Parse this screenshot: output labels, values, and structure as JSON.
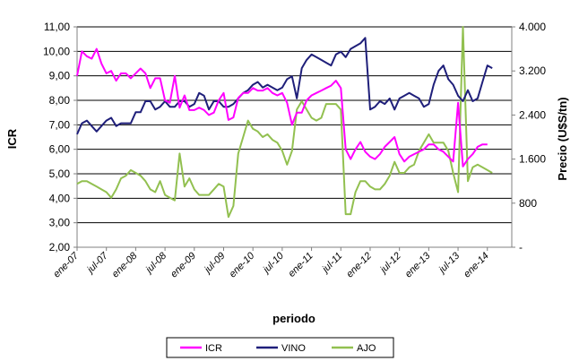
{
  "chart_data": {
    "type": "line",
    "xlabel": "periodo",
    "ylabel_left": "ICR",
    "ylabel_right": "Precio (U$S/tn)",
    "left_axis": {
      "min": 2.0,
      "max": 11.0,
      "step": 1.0,
      "ticks": [
        "2,00",
        "3,00",
        "4,00",
        "5,00",
        "6,00",
        "7,00",
        "8,00",
        "9,00",
        "10,00",
        "11,00"
      ]
    },
    "right_axis": {
      "min": 0,
      "max": 4000,
      "step": 800,
      "ticks": [
        "-",
        "800",
        "1.600",
        "2.400",
        "3.200",
        "4.000"
      ]
    },
    "x_tick_labels": [
      "ene-07",
      "jul-07",
      "ene-08",
      "jul-08",
      "ene-09",
      "jul-09",
      "ene-10",
      "jul-10",
      "ene-11",
      "jul-11",
      "ene-12",
      "jul-12",
      "ene-13",
      "jul-13",
      "ene-14"
    ],
    "x_tick_months": [
      0,
      6,
      12,
      18,
      24,
      30,
      36,
      42,
      48,
      54,
      60,
      66,
      72,
      78,
      84
    ],
    "x_max_month": 89,
    "grid": "horizontal",
    "legend_position": "bottom",
    "series": [
      {
        "name": "ICR",
        "axis": "left",
        "color": "#ff00ff",
        "points": [
          [
            0,
            9.0
          ],
          [
            1,
            10.0
          ],
          [
            2,
            9.8
          ],
          [
            3,
            9.7
          ],
          [
            4,
            10.1
          ],
          [
            5,
            9.5
          ],
          [
            6,
            9.1
          ],
          [
            7,
            9.2
          ],
          [
            8,
            8.8
          ],
          [
            9,
            9.1
          ],
          [
            10,
            9.1
          ],
          [
            11,
            8.9
          ],
          [
            12,
            9.1
          ],
          [
            13,
            9.3
          ],
          [
            14,
            9.1
          ],
          [
            15,
            8.5
          ],
          [
            16,
            8.9
          ],
          [
            17,
            8.9
          ],
          [
            18,
            8.0
          ],
          [
            19,
            7.9
          ],
          [
            20,
            9.0
          ],
          [
            21,
            7.7
          ],
          [
            22,
            8.2
          ],
          [
            23,
            7.6
          ],
          [
            24,
            7.6
          ],
          [
            25,
            7.7
          ],
          [
            26,
            7.6
          ],
          [
            27,
            7.4
          ],
          [
            28,
            7.5
          ],
          [
            29,
            8.0
          ],
          [
            30,
            8.3
          ],
          [
            31,
            7.2
          ],
          [
            32,
            7.3
          ],
          [
            33,
            8.1
          ],
          [
            34,
            8.3
          ],
          [
            35,
            8.3
          ],
          [
            36,
            8.5
          ],
          [
            37,
            8.4
          ],
          [
            38,
            8.4
          ],
          [
            39,
            8.5
          ],
          [
            40,
            8.3
          ],
          [
            41,
            8.2
          ],
          [
            42,
            8.3
          ],
          [
            43,
            7.9
          ],
          [
            44,
            7.0
          ],
          [
            45,
            7.5
          ],
          [
            46,
            7.5
          ],
          [
            47,
            8.0
          ],
          [
            48,
            8.2
          ],
          [
            49,
            8.3
          ],
          [
            50,
            8.4
          ],
          [
            51,
            8.5
          ],
          [
            52,
            8.6
          ],
          [
            53,
            8.8
          ],
          [
            54,
            8.5
          ],
          [
            55,
            6.0
          ],
          [
            56,
            5.6
          ],
          [
            57,
            6.0
          ],
          [
            58,
            6.3
          ],
          [
            59,
            5.9
          ],
          [
            60,
            5.7
          ],
          [
            61,
            5.6
          ],
          [
            62,
            5.8
          ],
          [
            63,
            6.1
          ],
          [
            64,
            6.3
          ],
          [
            65,
            6.5
          ],
          [
            66,
            5.8
          ],
          [
            67,
            5.5
          ],
          [
            68,
            5.7
          ],
          [
            69,
            5.8
          ],
          [
            70,
            5.9
          ],
          [
            71,
            6.0
          ],
          [
            72,
            6.2
          ],
          [
            73,
            6.2
          ],
          [
            74,
            6.0
          ],
          [
            75,
            5.9
          ],
          [
            76,
            5.7
          ],
          [
            77,
            5.5
          ],
          [
            78,
            7.9
          ],
          [
            79,
            5.3
          ],
          [
            80,
            5.6
          ],
          [
            81,
            5.8
          ],
          [
            82,
            6.1
          ],
          [
            83,
            6.2
          ],
          [
            84,
            6.2
          ]
        ]
      },
      {
        "name": "VINO",
        "axis": "right",
        "color": "#1f1f7a",
        "points": [
          [
            0,
            2050
          ],
          [
            1,
            2250
          ],
          [
            2,
            2300
          ],
          [
            3,
            2200
          ],
          [
            4,
            2100
          ],
          [
            5,
            2200
          ],
          [
            6,
            2300
          ],
          [
            7,
            2350
          ],
          [
            8,
            2200
          ],
          [
            9,
            2250
          ],
          [
            10,
            2250
          ],
          [
            11,
            2250
          ],
          [
            12,
            2450
          ],
          [
            13,
            2450
          ],
          [
            14,
            2650
          ],
          [
            15,
            2650
          ],
          [
            16,
            2500
          ],
          [
            17,
            2550
          ],
          [
            18,
            2650
          ],
          [
            19,
            2550
          ],
          [
            20,
            2550
          ],
          [
            21,
            2650
          ],
          [
            22,
            2650
          ],
          [
            23,
            2550
          ],
          [
            24,
            2600
          ],
          [
            25,
            2800
          ],
          [
            26,
            2750
          ],
          [
            27,
            2500
          ],
          [
            28,
            2650
          ],
          [
            29,
            2650
          ],
          [
            30,
            2550
          ],
          [
            31,
            2550
          ],
          [
            32,
            2600
          ],
          [
            33,
            2700
          ],
          [
            34,
            2800
          ],
          [
            35,
            2850
          ],
          [
            36,
            2950
          ],
          [
            37,
            3000
          ],
          [
            38,
            2900
          ],
          [
            39,
            2950
          ],
          [
            40,
            2900
          ],
          [
            41,
            2850
          ],
          [
            42,
            2900
          ],
          [
            43,
            3050
          ],
          [
            44,
            3100
          ],
          [
            45,
            2700
          ],
          [
            46,
            3250
          ],
          [
            47,
            3400
          ],
          [
            48,
            3500
          ],
          [
            49,
            3450
          ],
          [
            50,
            3400
          ],
          [
            51,
            3350
          ],
          [
            52,
            3300
          ],
          [
            53,
            3500
          ],
          [
            54,
            3550
          ],
          [
            55,
            3450
          ],
          [
            56,
            3600
          ],
          [
            57,
            3650
          ],
          [
            58,
            3700
          ],
          [
            59,
            3800
          ],
          [
            60,
            2500
          ],
          [
            61,
            2550
          ],
          [
            62,
            2650
          ],
          [
            63,
            2600
          ],
          [
            64,
            2700
          ],
          [
            65,
            2500
          ],
          [
            66,
            2700
          ],
          [
            67,
            2750
          ],
          [
            68,
            2800
          ],
          [
            69,
            2750
          ],
          [
            70,
            2700
          ],
          [
            71,
            2550
          ],
          [
            72,
            2600
          ],
          [
            73,
            2950
          ],
          [
            74,
            3200
          ],
          [
            75,
            3300
          ],
          [
            76,
            3050
          ],
          [
            77,
            2950
          ],
          [
            78,
            2750
          ],
          [
            79,
            2650
          ],
          [
            80,
            2850
          ],
          [
            81,
            2650
          ],
          [
            82,
            2700
          ],
          [
            83,
            3000
          ],
          [
            84,
            3300
          ],
          [
            85,
            3250
          ]
        ]
      },
      {
        "name": "AJO",
        "axis": "right",
        "color": "#92c050",
        "points": [
          [
            0,
            1150
          ],
          [
            1,
            1200
          ],
          [
            2,
            1200
          ],
          [
            3,
            1150
          ],
          [
            4,
            1100
          ],
          [
            5,
            1050
          ],
          [
            6,
            1000
          ],
          [
            7,
            900
          ],
          [
            8,
            1050
          ],
          [
            9,
            1250
          ],
          [
            10,
            1300
          ],
          [
            11,
            1400
          ],
          [
            12,
            1350
          ],
          [
            13,
            1300
          ],
          [
            14,
            1200
          ],
          [
            15,
            1050
          ],
          [
            16,
            1000
          ],
          [
            17,
            1200
          ],
          [
            18,
            950
          ],
          [
            19,
            900
          ],
          [
            20,
            850
          ],
          [
            21,
            1700
          ],
          [
            22,
            1100
          ],
          [
            23,
            1250
          ],
          [
            24,
            1050
          ],
          [
            25,
            950
          ],
          [
            26,
            950
          ],
          [
            27,
            950
          ],
          [
            28,
            1050
          ],
          [
            29,
            1150
          ],
          [
            30,
            1100
          ],
          [
            31,
            550
          ],
          [
            32,
            750
          ],
          [
            33,
            1700
          ],
          [
            34,
            2000
          ],
          [
            35,
            2300
          ],
          [
            36,
            2150
          ],
          [
            37,
            2100
          ],
          [
            38,
            2000
          ],
          [
            39,
            2050
          ],
          [
            40,
            1950
          ],
          [
            41,
            1900
          ],
          [
            42,
            1750
          ],
          [
            43,
            1500
          ],
          [
            44,
            1750
          ],
          [
            45,
            2500
          ],
          [
            46,
            2650
          ],
          [
            47,
            2500
          ],
          [
            48,
            2350
          ],
          [
            49,
            2300
          ],
          [
            50,
            2350
          ],
          [
            51,
            2600
          ],
          [
            52,
            2600
          ],
          [
            53,
            2600
          ],
          [
            54,
            2500
          ],
          [
            55,
            600
          ],
          [
            56,
            600
          ],
          [
            57,
            1000
          ],
          [
            58,
            1200
          ],
          [
            59,
            1200
          ],
          [
            60,
            1100
          ],
          [
            61,
            1050
          ],
          [
            62,
            1050
          ],
          [
            63,
            1150
          ],
          [
            64,
            1300
          ],
          [
            65,
            1550
          ],
          [
            66,
            1350
          ],
          [
            67,
            1350
          ],
          [
            68,
            1450
          ],
          [
            69,
            1500
          ],
          [
            70,
            1750
          ],
          [
            71,
            1900
          ],
          [
            72,
            2050
          ],
          [
            73,
            1900
          ],
          [
            74,
            1900
          ],
          [
            75,
            1900
          ],
          [
            76,
            1750
          ],
          [
            77,
            1350
          ],
          [
            78,
            1000
          ],
          [
            79,
            4000
          ],
          [
            80,
            1200
          ],
          [
            81,
            1450
          ],
          [
            82,
            1500
          ],
          [
            83,
            1450
          ],
          [
            84,
            1400
          ],
          [
            85,
            1350
          ]
        ]
      }
    ]
  }
}
